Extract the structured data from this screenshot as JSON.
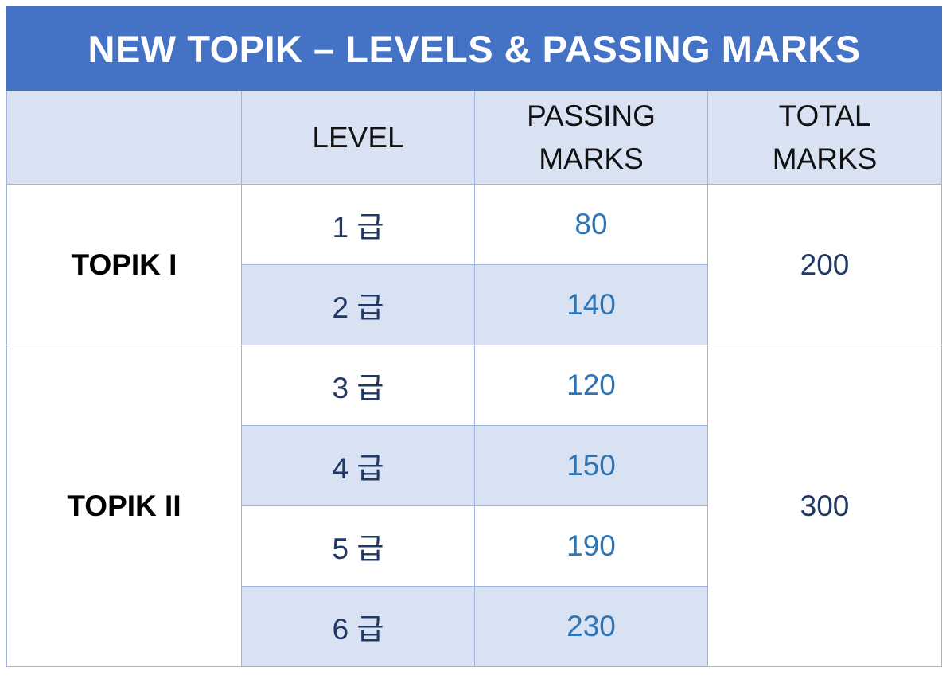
{
  "title": "NEW TOPIK – LEVELS & PASSING MARKS",
  "header": {
    "blank": "",
    "level": "LEVEL",
    "passing_line1": "PASSING",
    "passing_line2": "MARKS",
    "total_line1": "TOTAL",
    "total_line2": "MARKS"
  },
  "groups": [
    {
      "name": "TOPIK I",
      "total": "200",
      "rows": [
        {
          "level": "1 급",
          "passing": "80"
        },
        {
          "level": "2 급",
          "passing": "140"
        }
      ]
    },
    {
      "name": "TOPIK II",
      "total": "300",
      "rows": [
        {
          "level": "3 급",
          "passing": "120"
        },
        {
          "level": "4 급",
          "passing": "150"
        },
        {
          "level": "5 급",
          "passing": "190"
        },
        {
          "level": "6 급",
          "passing": "230"
        }
      ]
    }
  ],
  "colors": {
    "title_bg": "#4472c4",
    "header_bg": "#d9e2f3",
    "level_text": "#1f3864",
    "passing_text": "#2e75b6"
  }
}
